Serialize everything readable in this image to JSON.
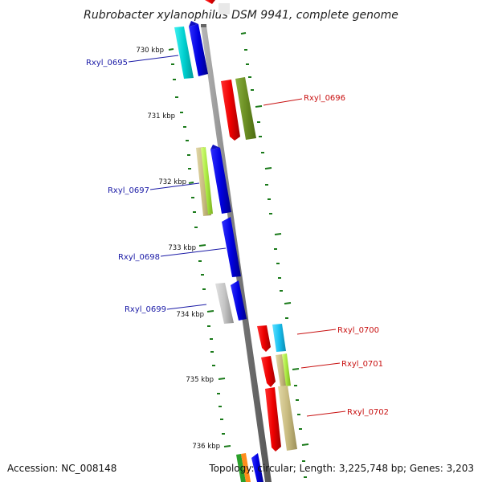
{
  "title": "Rubrobacter xylanophilus DSM 9941, complete genome",
  "ticks": [
    "730 kbp",
    "731 kbp",
    "732 kbp",
    "733 kbp",
    "734 kbp",
    "735 kbp",
    "736 kbp"
  ],
  "genes_left": [
    "Rxyl_0695",
    "Rxyl_0697",
    "Rxyl_0698",
    "Rxyl_0699"
  ],
  "genes_right": [
    "Rxyl_0696",
    "Rxyl_0700",
    "Rxyl_0701",
    "Rxyl_0702"
  ],
  "footer": {
    "accession": "Accession: NC_008148",
    "summary": "Topology: circular; Length: 3,225,748 bp; Genes: 3,203"
  },
  "colors": {
    "backbone": "#8a8a8a",
    "tick_green": "#1a7a1a",
    "label_left": "#1a1aa6",
    "label_right": "#c81010"
  }
}
